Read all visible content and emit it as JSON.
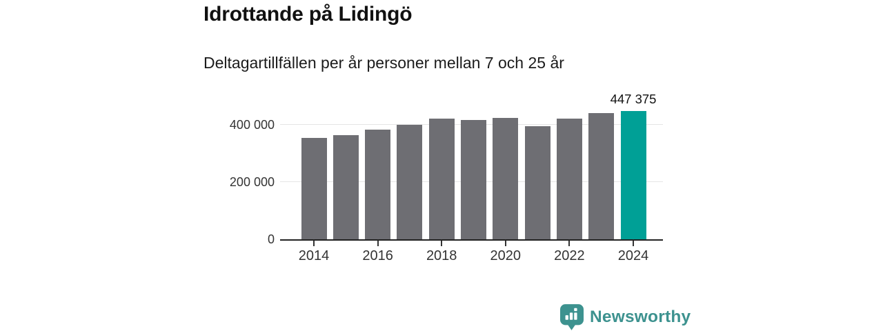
{
  "header": {
    "title": "Idrottande på Lidingö",
    "subtitle": "Deltagartillfällen per år personer mellan 7 och 25 år"
  },
  "chart_data": {
    "type": "bar",
    "title": "Idrottande på Lidingö",
    "subtitle": "Deltagartillfällen per år personer mellan 7 och 25 år",
    "categories": [
      "2014",
      "2015",
      "2016",
      "2017",
      "2018",
      "2019",
      "2020",
      "2021",
      "2022",
      "2023",
      "2024"
    ],
    "values": [
      354000,
      364000,
      384000,
      401000,
      421000,
      417000,
      424000,
      395000,
      421000,
      441000,
      447375
    ],
    "highlight_index": 10,
    "highlight_value_label": "447 375",
    "xlabel": "",
    "ylabel": "",
    "ylim": [
      0,
      460000
    ],
    "yticks": [
      0,
      200000,
      400000
    ],
    "ytick_labels": [
      "0",
      "200 000",
      "400 000"
    ],
    "xtick_labels": [
      "2014",
      "2016",
      "2018",
      "2020",
      "2022",
      "2024"
    ],
    "grid": true,
    "legend": "none",
    "bar_color": "#6e6e73",
    "highlight_color": "#00a096"
  },
  "footer": {
    "brand": "Newsworthy",
    "brand_color": "#3d928f",
    "logo_icon": "bar-chart-speech-bubble-icon"
  },
  "colors": {
    "background": "#ffffff",
    "axis_line": "#222222",
    "gridline": "#e5e5e5",
    "text_dark": "#111111",
    "axis_text": "#333333"
  }
}
